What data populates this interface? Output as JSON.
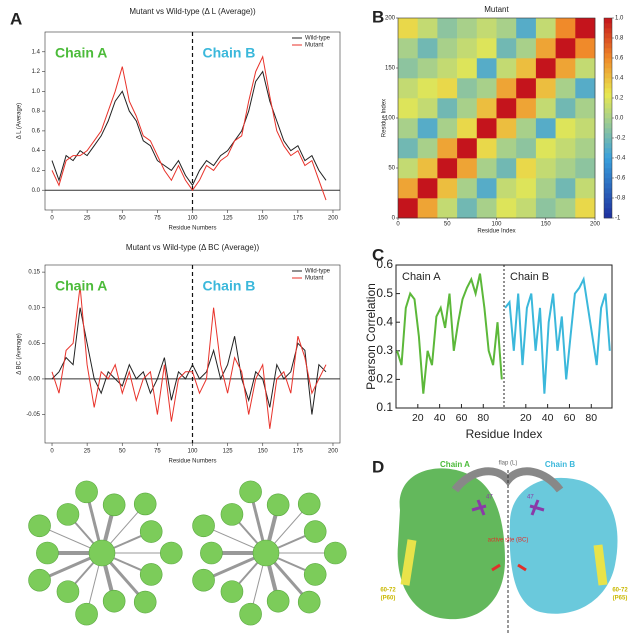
{
  "panels": [
    "A",
    "B",
    "C",
    "D"
  ],
  "chart_data": [
    {
      "type": "line",
      "title": "Mutant vs Wild-type (Δ L (Average))",
      "xlabel": "Residue Numbers",
      "ylabel": "Δ L (Average)",
      "x": [
        0,
        5,
        10,
        15,
        20,
        25,
        30,
        35,
        40,
        45,
        50,
        55,
        60,
        65,
        70,
        75,
        80,
        85,
        90,
        95,
        100,
        105,
        110,
        115,
        120,
        125,
        130,
        135,
        140,
        145,
        150,
        155,
        160,
        165,
        170,
        175,
        180,
        185,
        190,
        195
      ],
      "series": [
        {
          "name": "Wild-type",
          "color": "#222222",
          "values": [
            0.3,
            0.1,
            0.35,
            0.3,
            0.4,
            0.35,
            0.45,
            0.55,
            0.7,
            0.9,
            1.0,
            0.8,
            0.7,
            0.5,
            0.45,
            0.3,
            0.25,
            0.2,
            0.3,
            0.15,
            0.05,
            0.2,
            0.3,
            0.25,
            0.35,
            0.4,
            0.5,
            0.6,
            0.8,
            1.1,
            1.2,
            0.9,
            0.7,
            0.5,
            0.4,
            0.45,
            0.3,
            0.35,
            0.2,
            0.1
          ]
        },
        {
          "name": "Mutant",
          "color": "#e8322a",
          "values": [
            0.2,
            0.05,
            0.3,
            0.35,
            0.35,
            0.4,
            0.5,
            0.6,
            0.8,
            1.0,
            1.25,
            0.9,
            0.75,
            0.55,
            0.5,
            0.35,
            0.2,
            0.1,
            0.25,
            0.1,
            0.0,
            0.1,
            0.25,
            0.2,
            0.3,
            0.35,
            0.5,
            0.55,
            0.9,
            1.2,
            1.35,
            0.95,
            0.6,
            0.45,
            0.35,
            0.4,
            0.25,
            0.3,
            0.1,
            -0.1
          ]
        }
      ],
      "xlim": [
        -5,
        205
      ],
      "xticks": [
        0,
        25,
        50,
        75,
        100,
        125,
        150,
        175,
        200
      ],
      "ylim": [
        -0.2,
        1.6
      ],
      "yticks": [
        {
          "value": 0,
          "label": "0.0"
        },
        0.2,
        0.4,
        0.6,
        0.8,
        {
          "value": 1,
          "label": "1.0"
        },
        1.2,
        1.4
      ],
      "hline": 0,
      "vline": 100,
      "legend": "upper right",
      "annotations": [
        {
          "text": "Chain A",
          "color": "#4cbb3a"
        },
        {
          "text": "Chain B",
          "color": "#3bb8db"
        }
      ]
    },
    {
      "type": "line",
      "title": "Mutant vs Wild-type (Δ BC (Average))",
      "xlabel": "Residue Numbers",
      "ylabel": "Δ BC (Average)",
      "x": [
        0,
        5,
        10,
        15,
        20,
        25,
        30,
        35,
        40,
        45,
        50,
        55,
        60,
        65,
        70,
        75,
        80,
        85,
        90,
        95,
        100,
        105,
        110,
        115,
        120,
        125,
        130,
        135,
        140,
        145,
        150,
        155,
        160,
        165,
        170,
        175,
        180,
        185,
        190,
        195
      ],
      "series": [
        {
          "name": "Wild-type",
          "color": "#222222",
          "values": [
            0,
            0.01,
            0.03,
            0.02,
            0.1,
            0.05,
            0.0,
            -0.02,
            0.01,
            0.0,
            -0.01,
            0.02,
            0.0,
            0.01,
            -0.02,
            0.0,
            0.03,
            -0.03,
            0.01,
            0.0,
            0.02,
            0.0,
            0.01,
            0.04,
            0.0,
            0.02,
            0.06,
            0.0,
            -0.03,
            0.01,
            0.0,
            -0.04,
            0.02,
            0.0,
            0.01,
            0.05,
            0.04,
            -0.05,
            0.02,
            0.01
          ]
        },
        {
          "name": "Mutant",
          "color": "#e8322a",
          "values": [
            0.01,
            -0.02,
            0.04,
            0.05,
            0.13,
            0.02,
            -0.04,
            0.01,
            0.0,
            0.02,
            -0.02,
            0.01,
            -0.03,
            0.0,
            0.01,
            -0.05,
            0.02,
            -0.06,
            0.0,
            0.01,
            0.01,
            -0.02,
            0.0,
            0.1,
            0.02,
            -0.02,
            0.03,
            0.01,
            -0.05,
            0.0,
            0.02,
            -0.07,
            0.0,
            0.01,
            -0.02,
            0.06,
            0.03,
            -0.02,
            0.0,
            0.02
          ]
        }
      ],
      "xlim": [
        -5,
        205
      ],
      "xticks": [
        0,
        25,
        50,
        75,
        100,
        125,
        150,
        175,
        200
      ],
      "ylim": [
        -0.09,
        0.16
      ],
      "yticks": [
        -0.05,
        {
          "value": 0,
          "label": "0.00"
        },
        0.05,
        {
          "value": 0.1,
          "label": "0.10"
        },
        0.15
      ],
      "hline": 0,
      "vline": 100,
      "legend": "upper right",
      "annotations": [
        {
          "text": "Chain A",
          "color": "#4cbb3a"
        },
        {
          "text": "Chain B",
          "color": "#3bb8db"
        }
      ]
    },
    {
      "type": "heatmap",
      "title": "Mutant",
      "xlabel": "Residue Index",
      "ylabel": "Residue Index",
      "z": [
        [
          1,
          0.5,
          0.1,
          -0.2,
          0.0,
          0.2,
          0.1,
          -0.1,
          0.0,
          0.3
        ],
        [
          0.5,
          1,
          0.4,
          0.0,
          -0.3,
          0.1,
          0.2,
          0.0,
          -0.2,
          0.1
        ],
        [
          0.1,
          0.4,
          1,
          0.5,
          0.0,
          -0.2,
          0.3,
          0.1,
          0.0,
          -0.1
        ],
        [
          -0.2,
          0.0,
          0.5,
          1,
          0.3,
          0.0,
          -0.1,
          0.2,
          0.1,
          0.0
        ],
        [
          0.0,
          -0.3,
          0.0,
          0.3,
          1,
          0.4,
          0.0,
          -0.3,
          0.2,
          0.1
        ],
        [
          0.2,
          0.1,
          -0.2,
          0.0,
          0.4,
          1,
          0.5,
          0.1,
          -0.2,
          0.0
        ],
        [
          0.1,
          0.2,
          0.3,
          -0.1,
          0.0,
          0.5,
          1,
          0.4,
          0.0,
          -0.3
        ],
        [
          -0.1,
          0.0,
          0.1,
          0.2,
          -0.3,
          0.1,
          0.4,
          1,
          0.5,
          0.1
        ],
        [
          0.0,
          -0.2,
          0.0,
          0.1,
          0.2,
          -0.2,
          0.0,
          0.5,
          1,
          0.6
        ],
        [
          0.3,
          0.1,
          -0.1,
          0.0,
          0.1,
          0.0,
          -0.3,
          0.1,
          0.6,
          1
        ]
      ],
      "xlim": [
        0,
        200
      ],
      "ylim": [
        0,
        200
      ],
      "xticks": [
        0,
        50,
        100,
        150,
        200
      ],
      "yticks": [
        0,
        50,
        100,
        150,
        200
      ],
      "clim": [
        -1,
        1
      ],
      "cticks": [
        {
          "value": 1,
          "label": "1.0"
        },
        0.8,
        0.6,
        0.4,
        0.2,
        {
          "value": 0,
          "label": "0.0"
        },
        -0.2,
        -0.4,
        -0.6,
        -0.8,
        -1
      ]
    },
    {
      "type": "split_line",
      "xlabel": "Residue Index",
      "ylabel": "Pearson Correlation",
      "series": [
        {
          "name": "Chain A",
          "color": "#5cb83a",
          "x": [
            1,
            5,
            9,
            13,
            17,
            21,
            25,
            29,
            33,
            37,
            41,
            45,
            49,
            53,
            57,
            61,
            65,
            69,
            73,
            77,
            81,
            85,
            89,
            93,
            97
          ],
          "values": [
            0.3,
            0.25,
            0.45,
            0.5,
            0.48,
            0.35,
            0.15,
            0.3,
            0.25,
            0.42,
            0.45,
            0.38,
            0.5,
            0.3,
            0.4,
            0.48,
            0.52,
            0.55,
            0.5,
            0.57,
            0.45,
            0.3,
            0.25,
            0.4,
            0.2
          ]
        },
        {
          "name": "Chain B",
          "color": "#3bb8db",
          "x": [
            1,
            5,
            9,
            13,
            17,
            21,
            25,
            29,
            33,
            37,
            41,
            45,
            49,
            53,
            57,
            61,
            65,
            69,
            73,
            77,
            81,
            85,
            89,
            93,
            97
          ],
          "values": [
            0.45,
            0.47,
            0.3,
            0.5,
            0.25,
            0.45,
            0.5,
            0.3,
            0.45,
            0.15,
            0.4,
            0.5,
            0.3,
            0.42,
            0.2,
            0.35,
            0.5,
            0.52,
            0.55,
            0.45,
            0.35,
            0.25,
            0.45,
            0.5,
            0.3
          ]
        }
      ],
      "xlim": [
        0,
        99
      ],
      "xticks": [
        20,
        40,
        60,
        80
      ],
      "ylim": [
        0.1,
        0.6
      ],
      "yticks": [
        0.1,
        0.2,
        0.3,
        0.4,
        0.5,
        0.6
      ]
    }
  ],
  "structure": {
    "chain_a": "Chain A",
    "chain_b": "Chain B",
    "flap": "flap (L)",
    "res_left": "47",
    "res_right": "47",
    "active_site": "active site (BC)",
    "loop_left": "60-72",
    "loop_left_sub": "(P60)",
    "loop_right": "60-72",
    "loop_right_sub": "(P65)"
  }
}
